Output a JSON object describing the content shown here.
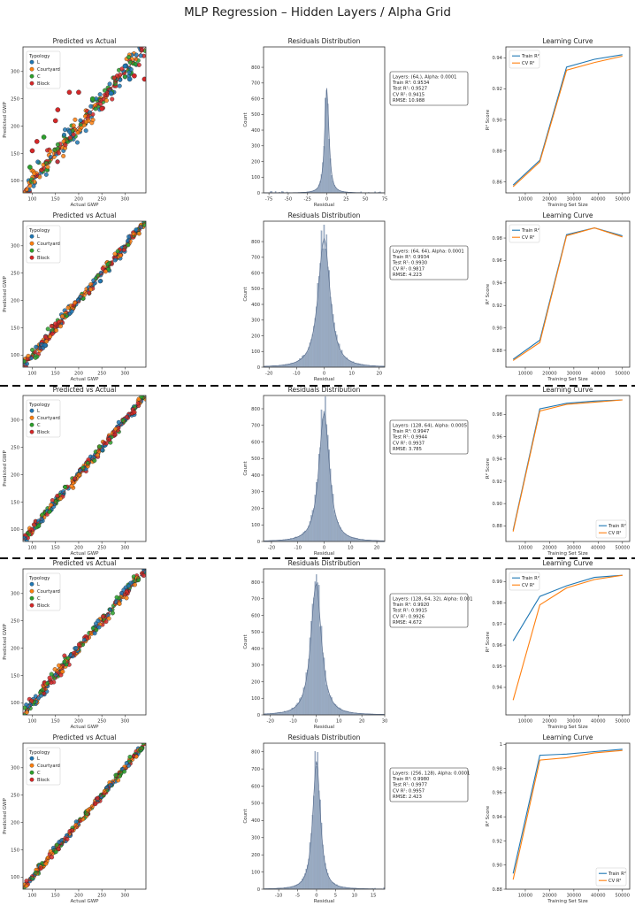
{
  "figure_title": "MLP Regression – Hidden Layers / Alpha Grid",
  "legend_title": "Typology",
  "typology_colors": {
    "L": "#1f77b4",
    "Courtyard": "#ff7f0e",
    "C": "#2ca02c",
    "Block": "#d62728"
  },
  "residual_color": "#9aacc4",
  "chart_data": [
    {
      "row": 1,
      "scatter": {
        "type": "scatter",
        "title": "Predicted vs Actual",
        "xlabel": "Actual GWP",
        "ylabel": "Predicted GWP",
        "xlim": [
          80,
          345
        ],
        "ylim": [
          78,
          345
        ],
        "xticks": [
          100,
          150,
          200,
          250,
          300
        ],
        "yticks": [
          100,
          150,
          200,
          250,
          300
        ],
        "legend": [
          "L",
          "Courtyard",
          "C",
          "Block"
        ],
        "legend_pos": "top-left",
        "spread": 10,
        "outliers": [
          [
            100,
            155,
            "Block"
          ],
          [
            110,
            172,
            "Block"
          ],
          [
            95,
            125,
            "C"
          ],
          [
            150,
            210,
            "Block"
          ],
          [
            155,
            230,
            "Block"
          ],
          [
            180,
            262,
            "Block"
          ],
          [
            200,
            262,
            "Block"
          ],
          [
            250,
            232,
            "Block"
          ],
          [
            270,
            260,
            "L"
          ],
          [
            310,
            286,
            "L"
          ],
          [
            342,
            286,
            "Block"
          ],
          [
            300,
            310,
            "L"
          ],
          [
            320,
            292,
            "Block"
          ],
          [
            230,
            250,
            "C"
          ],
          [
            125,
            180,
            "C"
          ]
        ]
      },
      "residuals": {
        "type": "bar",
        "title": "Residuals Distribution",
        "xlabel": "Residual",
        "ylabel": "Count",
        "xlim": [
          -82,
          75
        ],
        "ylim": [
          0,
          930
        ],
        "xticks": [
          -75,
          -50,
          -25,
          0,
          25,
          50,
          75
        ],
        "yticks": [
          0,
          100,
          200,
          300,
          400,
          500,
          600,
          700,
          800
        ],
        "peak": 720,
        "center": 0,
        "scale": 3.5,
        "legend_pos": "top-right",
        "annotation": [
          "Layers: (64,), Alpha: 0.0001",
          "Train R²: 0.9534",
          "Test R²: 0.9527",
          "CV R²: 0.9415",
          "RMSE: 10.988"
        ]
      },
      "learning": {
        "type": "line",
        "title": "Learning Curve",
        "xlabel": "Training Set Size",
        "ylabel": "R² Score",
        "x": [
          5000,
          16000,
          27000,
          38500,
          50000
        ],
        "xlim": [
          2000,
          53000
        ],
        "xticks": [
          10000,
          20000,
          30000,
          40000,
          50000
        ],
        "ylim": [
          0.853,
          0.947
        ],
        "yticks": [
          0.86,
          0.88,
          0.9,
          0.92,
          0.94
        ],
        "legend_pos": "top-left",
        "series": [
          {
            "name": "Train R²",
            "values": [
              0.858,
              0.874,
              0.934,
              0.939,
              0.942
            ]
          },
          {
            "name": "CV R²",
            "values": [
              0.857,
              0.873,
              0.932,
              0.937,
              0.941
            ]
          }
        ]
      }
    },
    {
      "row": 2,
      "scatter": {
        "type": "scatter",
        "title": "Predicted vs Actual",
        "xlabel": "Actual GWP",
        "ylabel": "Predicted GWP",
        "xlim": [
          80,
          345
        ],
        "ylim": [
          78,
          345
        ],
        "xticks": [
          100,
          150,
          200,
          250,
          300
        ],
        "yticks": [
          100,
          150,
          200,
          250,
          300
        ],
        "legend": [
          "L",
          "Courtyard",
          "C",
          "Block"
        ],
        "legend_pos": "top-left",
        "spread": 5,
        "outliers": []
      },
      "residuals": {
        "type": "bar",
        "title": "Residuals Distribution",
        "xlabel": "Residual",
        "ylabel": "Count",
        "xlim": [
          -22,
          22
        ],
        "ylim": [
          0,
          930
        ],
        "xticks": [
          -20,
          -10,
          0,
          10,
          20
        ],
        "yticks": [
          0,
          100,
          200,
          300,
          400,
          500,
          600,
          700,
          800
        ],
        "peak": 880,
        "center": 0,
        "scale": 2.8,
        "legend_pos": "top-right",
        "annotation": [
          "Layers: (64, 64), Alpha: 0.0001",
          "Train R²: 0.9934",
          "Test R²: 0.9930",
          "CV R²: 0.9817",
          "RMSE: 4.223"
        ]
      },
      "learning": {
        "type": "line",
        "title": "Learning Curve",
        "xlabel": "Training Set Size",
        "ylabel": "R² Score",
        "x": [
          5000,
          16000,
          27000,
          38500,
          50000
        ],
        "xlim": [
          2000,
          53000
        ],
        "xticks": [
          10000,
          20000,
          30000,
          40000,
          50000
        ],
        "ylim": [
          0.865,
          0.995
        ],
        "yticks": [
          0.88,
          0.9,
          0.92,
          0.94,
          0.96,
          0.98
        ],
        "legend_pos": "top-left",
        "series": [
          {
            "name": "Train R²",
            "values": [
              0.872,
              0.889,
              0.983,
              0.989,
              0.982
            ]
          },
          {
            "name": "CV R²",
            "values": [
              0.871,
              0.887,
              0.982,
              0.989,
              0.981
            ]
          }
        ]
      }
    },
    {
      "row": 3,
      "scatter": {
        "type": "scatter",
        "title": "Predicted vs Actual",
        "xlabel": "Actual GWP",
        "ylabel": "Predicted GWP",
        "xlim": [
          80,
          345
        ],
        "ylim": [
          78,
          345
        ],
        "xticks": [
          100,
          150,
          200,
          250,
          300
        ],
        "yticks": [
          100,
          150,
          200,
          250,
          300
        ],
        "legend": [
          "L",
          "Courtyard",
          "C",
          "Block"
        ],
        "legend_pos": "top-left",
        "spread": 4.5,
        "outliers": []
      },
      "residuals": {
        "type": "bar",
        "title": "Residuals Distribution",
        "xlabel": "Residual",
        "ylabel": "Count",
        "xlim": [
          -23,
          23
        ],
        "ylim": [
          0,
          880
        ],
        "xticks": [
          -20,
          -10,
          0,
          10,
          20
        ],
        "yticks": [
          0,
          100,
          200,
          300,
          400,
          500,
          600,
          700,
          800
        ],
        "peak": 830,
        "center": 0,
        "scale": 2.6,
        "legend_pos": "top-right",
        "annotation": [
          "Layers: (128, 64), Alpha: 0.0005",
          "Train R²: 0.9947",
          "Test R²: 0.9944",
          "CV R²: 0.9937",
          "RMSE: 3.785"
        ]
      },
      "learning": {
        "type": "line",
        "title": "Learning Curve",
        "xlabel": "Training Set Size",
        "ylabel": "R² Score",
        "x": [
          5000,
          16000,
          27000,
          38500,
          50000
        ],
        "xlim": [
          2000,
          53000
        ],
        "xticks": [
          10000,
          20000,
          30000,
          40000,
          50000
        ],
        "ylim": [
          0.866,
          0.997
        ],
        "yticks": [
          0.88,
          0.9,
          0.92,
          0.94,
          0.96,
          0.98
        ],
        "legend_pos": "bottom-right",
        "series": [
          {
            "name": "Train R²",
            "values": [
              0.876,
              0.985,
              0.99,
              0.992,
              0.993
            ]
          },
          {
            "name": "CV R²",
            "values": [
              0.875,
              0.983,
              0.989,
              0.991,
              0.993
            ]
          }
        ]
      }
    },
    {
      "row": 4,
      "scatter": {
        "type": "scatter",
        "title": "Predicted vs Actual",
        "xlabel": "Actual GWP",
        "ylabel": "Predicted GWP",
        "xlim": [
          80,
          345
        ],
        "ylim": [
          78,
          345
        ],
        "xticks": [
          100,
          150,
          200,
          250,
          300
        ],
        "yticks": [
          100,
          150,
          200,
          250,
          300
        ],
        "legend": [
          "L",
          "Courtyard",
          "C",
          "Block"
        ],
        "legend_pos": "top-left",
        "spread": 5,
        "outliers": []
      },
      "residuals": {
        "type": "bar",
        "title": "Residuals Distribution",
        "xlabel": "Residual",
        "ylabel": "Count",
        "xlim": [
          -23,
          30
        ],
        "ylim": [
          0,
          880
        ],
        "xticks": [
          -20,
          -10,
          0,
          10,
          20,
          30
        ],
        "yticks": [
          0,
          100,
          200,
          300,
          400,
          500,
          600,
          700,
          800
        ],
        "peak": 850,
        "center": 0,
        "scale": 3.0,
        "legend_pos": "top-right",
        "annotation": [
          "Layers: (128, 64, 32), Alpha: 0.001",
          "Train R²: 0.9920",
          "Test R²: 0.9915",
          "CV R²: 0.9926",
          "RMSE: 4.672"
        ]
      },
      "learning": {
        "type": "line",
        "title": "Learning Curve",
        "xlabel": "Training Set Size",
        "ylabel": "R² Score",
        "x": [
          5000,
          16000,
          27000,
          38500,
          50000
        ],
        "xlim": [
          2000,
          53000
        ],
        "xticks": [
          10000,
          20000,
          30000,
          40000,
          50000
        ],
        "ylim": [
          0.927,
          0.996
        ],
        "yticks": [
          0.94,
          0.95,
          0.96,
          0.97,
          0.98,
          0.99
        ],
        "legend_pos": "top-left",
        "series": [
          {
            "name": "Train R²",
            "values": [
              0.962,
              0.983,
              0.988,
              0.992,
              0.993
            ]
          },
          {
            "name": "CV R²",
            "values": [
              0.934,
              0.979,
              0.987,
              0.991,
              0.993
            ]
          }
        ]
      }
    },
    {
      "row": 5,
      "scatter": {
        "type": "scatter",
        "title": "Predicted vs Actual",
        "xlabel": "Actual GWP",
        "ylabel": "Predicted GWP",
        "xlim": [
          80,
          345
        ],
        "ylim": [
          78,
          345
        ],
        "xticks": [
          100,
          150,
          200,
          250,
          300
        ],
        "yticks": [
          100,
          150,
          200,
          250,
          300
        ],
        "legend": [
          "L",
          "Courtyard",
          "C",
          "Block"
        ],
        "legend_pos": "top-left",
        "spread": 3,
        "outliers": []
      },
      "residuals": {
        "type": "bar",
        "title": "Residuals Distribution",
        "xlabel": "Residual",
        "ylabel": "Count",
        "xlim": [
          -14,
          18
        ],
        "ylim": [
          0,
          850
        ],
        "xticks": [
          -10,
          -5,
          0,
          5,
          10,
          15
        ],
        "yticks": [
          0,
          100,
          200,
          300,
          400,
          500,
          600,
          700,
          800
        ],
        "peak": 800,
        "center": 0,
        "scale": 1.3,
        "legend_pos": "top-right",
        "annotation": [
          "Layers: (256, 128), Alpha: 0.0001",
          "Train R²: 0.9980",
          "Test R²: 0.9977",
          "CV R²: 0.9957",
          "RMSE: 2.423"
        ]
      },
      "learning": {
        "type": "line",
        "title": "Learning Curve",
        "xlabel": "Training Set Size",
        "ylabel": "R² Score",
        "x": [
          5000,
          16000,
          27000,
          38500,
          50000
        ],
        "xlim": [
          2000,
          53000
        ],
        "xticks": [
          10000,
          20000,
          30000,
          40000,
          50000
        ],
        "ylim": [
          0.88,
          1.001
        ],
        "yticks": [
          0.88,
          0.9,
          0.92,
          0.94,
          0.96,
          0.98,
          1.0
        ],
        "legend_pos": "bottom-right",
        "series": [
          {
            "name": "Train R²",
            "values": [
              0.893,
              0.991,
              0.992,
              0.994,
              0.996
            ]
          },
          {
            "name": "CV R²",
            "values": [
              0.888,
              0.987,
              0.989,
              0.993,
              0.995
            ]
          }
        ]
      }
    }
  ]
}
